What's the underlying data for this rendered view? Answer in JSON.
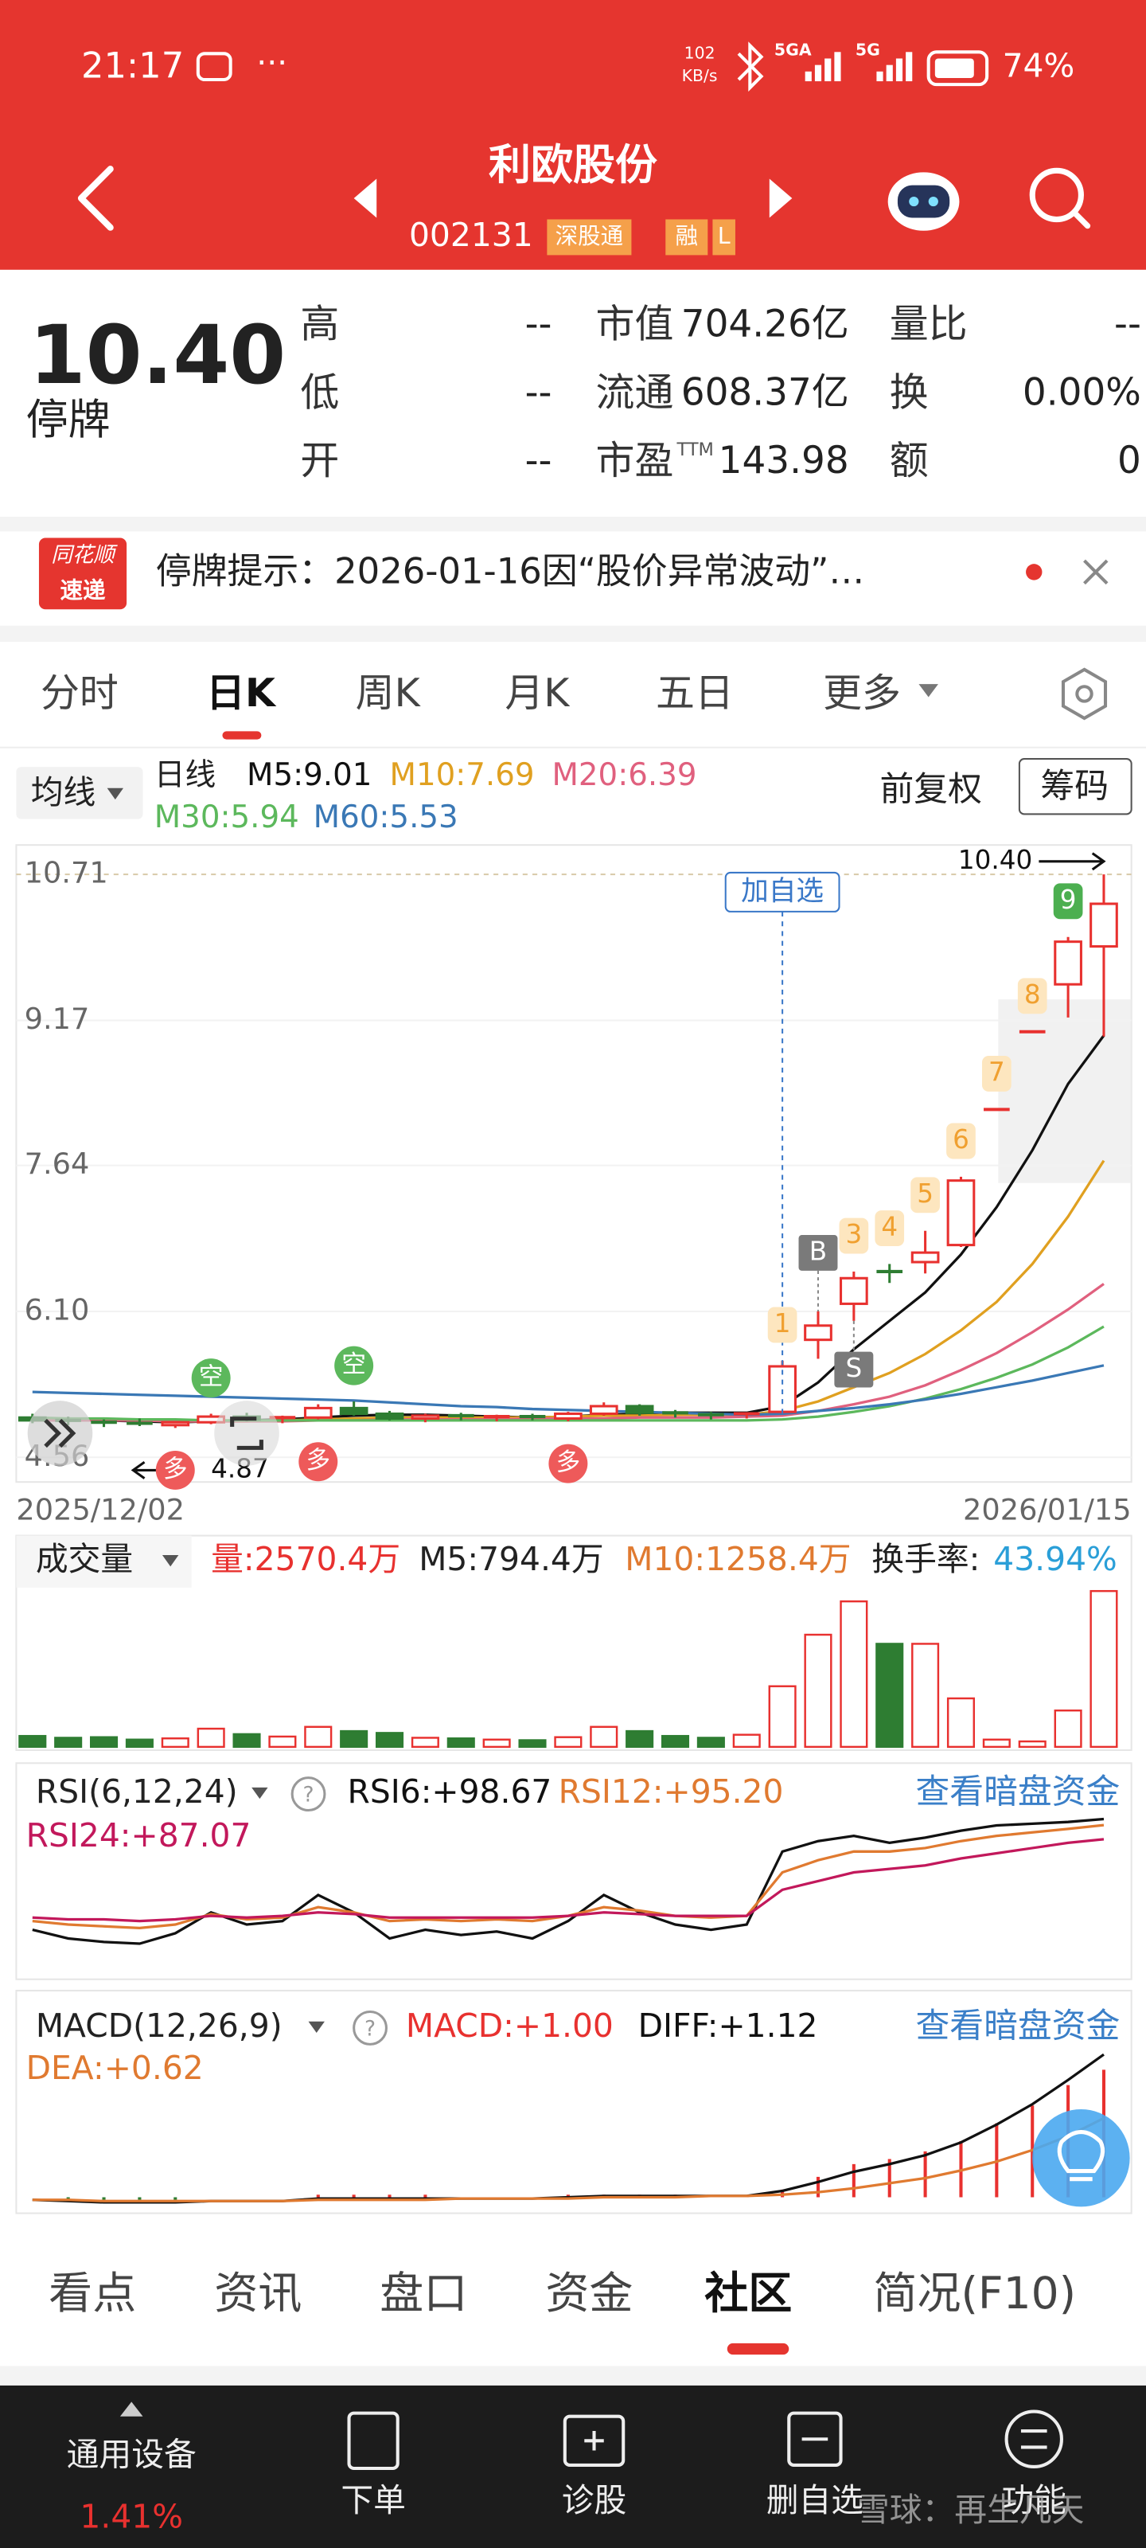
{
  "status_bar": {
    "time": "21:17",
    "net_speed": "102",
    "net_unit": "KB/s",
    "sim1": "5GA",
    "sim2": "5G",
    "battery": "74%"
  },
  "header": {
    "title": "利欧股份",
    "code": "002131",
    "tags": [
      "深股通",
      "融",
      "L"
    ]
  },
  "quote": {
    "price": "10.40",
    "status": "停牌",
    "ttm": "TTM",
    "fields": [
      [
        "高",
        "--"
      ],
      [
        "市值",
        "704.26亿"
      ],
      [
        "量比",
        "--"
      ],
      [
        "低",
        "--"
      ],
      [
        "流通",
        "608.37亿"
      ],
      [
        "换",
        "0.00%"
      ],
      [
        "开",
        "--"
      ],
      [
        "市盈",
        "143.98"
      ],
      [
        "额",
        "0"
      ]
    ]
  },
  "notice": {
    "logo_top": "同花顺",
    "logo_bottom": "速递",
    "text": "停牌提示：2026-01-16因“股价异常波动”…"
  },
  "period_tabs": [
    "分时",
    "日K",
    "周K",
    "月K",
    "五日",
    "更多"
  ],
  "ma_bar": {
    "button": "均线",
    "period": "日线",
    "adjust": "前复权",
    "chips": "筹码"
  },
  "price_chart": {
    "type": "candlestick",
    "categories": [
      "2025/12/02",
      null,
      null,
      null,
      null,
      null,
      null,
      null,
      null,
      null,
      null,
      null,
      null,
      null,
      null,
      null,
      null,
      null,
      null,
      null,
      null,
      null,
      null,
      null,
      null,
      null,
      null,
      null,
      null,
      null,
      "2026/01/15"
    ],
    "open": [
      4.98,
      4.95,
      4.93,
      4.92,
      4.9,
      4.93,
      4.99,
      4.96,
      4.98,
      5.08,
      5.02,
      4.97,
      5.0,
      4.98,
      4.99,
      4.97,
      5.02,
      5.1,
      5.03,
      5.01,
      5.0,
      5.04,
      5.8,
      6.18,
      6.52,
      6.62,
      6.8,
      8.23,
      9.05,
      9.55,
      9.95
    ],
    "high": [
      5.02,
      4.99,
      4.96,
      4.97,
      4.94,
      5.02,
      5.03,
      5.0,
      5.12,
      5.15,
      5.05,
      5.02,
      5.03,
      5.01,
      5.02,
      5.04,
      5.14,
      5.12,
      5.06,
      5.04,
      5.03,
      5.58,
      6.1,
      6.52,
      6.6,
      6.95,
      7.52,
      8.23,
      9.05,
      10.05,
      10.71
    ],
    "low": [
      4.92,
      4.9,
      4.88,
      4.89,
      4.87,
      4.91,
      4.94,
      4.92,
      4.96,
      5.0,
      4.95,
      4.93,
      4.95,
      4.94,
      4.95,
      4.94,
      5.0,
      5.0,
      4.98,
      4.96,
      4.97,
      5.02,
      5.6,
      6.0,
      6.4,
      6.5,
      6.78,
      8.23,
      9.05,
      9.2,
      9.0
    ],
    "close": [
      4.95,
      4.93,
      4.92,
      4.9,
      4.93,
      4.99,
      4.96,
      4.98,
      5.08,
      5.02,
      4.97,
      5.0,
      4.98,
      4.99,
      4.97,
      5.02,
      5.1,
      5.03,
      5.01,
      5.0,
      5.02,
      5.52,
      5.95,
      6.45,
      6.5,
      6.72,
      7.48,
      8.23,
      9.05,
      10.0,
      10.4
    ],
    "up_color": "#e8312f",
    "down_color": "#2e7d32",
    "ylim": [
      4.3,
      11.02
    ],
    "yticks": [
      10.71,
      9.17,
      7.64,
      {
        "value": 6.1,
        "label": "6.10"
      },
      4.56
    ],
    "series": [
      {
        "name": "M5:9.01",
        "color": "#111111",
        "values": [
          4.97,
          4.96,
          4.95,
          4.94,
          4.93,
          4.94,
          4.95,
          4.96,
          4.98,
          5.0,
          5.01,
          5.01,
          5.0,
          4.99,
          4.98,
          4.99,
          5.01,
          5.02,
          5.03,
          5.03,
          5.03,
          5.1,
          5.35,
          5.7,
          6.0,
          6.3,
          6.7,
          7.2,
          7.8,
          8.5,
          9.01
        ]
      },
      {
        "name": "M10:7.69",
        "color": "#e0a020",
        "values": [
          4.96,
          4.96,
          4.95,
          4.95,
          4.94,
          4.94,
          4.94,
          4.95,
          4.96,
          4.97,
          4.98,
          4.98,
          4.98,
          4.98,
          4.98,
          4.99,
          5.0,
          5.0,
          5.01,
          5.01,
          5.01,
          5.05,
          5.15,
          5.3,
          5.45,
          5.65,
          5.9,
          6.2,
          6.6,
          7.1,
          7.69
        ]
      },
      {
        "name": "M20:6.39",
        "color": "#e0607e",
        "values": [
          4.95,
          4.95,
          4.95,
          4.95,
          4.94,
          4.94,
          4.94,
          4.94,
          4.95,
          4.95,
          4.96,
          4.96,
          4.96,
          4.96,
          4.97,
          4.97,
          4.97,
          4.98,
          4.98,
          4.98,
          4.99,
          5.0,
          5.05,
          5.12,
          5.2,
          5.32,
          5.48,
          5.66,
          5.88,
          6.12,
          6.39
        ]
      },
      {
        "name": "M30:5.94",
        "color": "#5cb85c",
        "values": [
          4.98,
          4.97,
          4.97,
          4.96,
          4.96,
          4.95,
          4.95,
          4.95,
          4.95,
          4.95,
          4.95,
          4.95,
          4.95,
          4.95,
          4.95,
          4.95,
          4.95,
          4.95,
          4.95,
          4.95,
          4.95,
          4.96,
          4.99,
          5.04,
          5.1,
          5.18,
          5.28,
          5.4,
          5.54,
          5.72,
          5.94
        ]
      },
      {
        "name": "M60:5.53",
        "color": "#3a78b5",
        "values": [
          5.25,
          5.24,
          5.23,
          5.22,
          5.21,
          5.2,
          5.19,
          5.18,
          5.17,
          5.16,
          5.14,
          5.12,
          5.1,
          5.09,
          5.07,
          5.06,
          5.05,
          5.04,
          5.03,
          5.02,
          5.01,
          5.02,
          5.05,
          5.08,
          5.12,
          5.17,
          5.23,
          5.3,
          5.37,
          5.45,
          5.53
        ]
      }
    ],
    "watch_label": "加自选",
    "watch_index": 21,
    "last_label": "10.40",
    "low_label": "4.87",
    "counts": [
      {
        "index": 21,
        "label": "1",
        "color": "#f0a030",
        "background": "#fde6bf"
      },
      {
        "index": 23,
        "label": "3",
        "color": "#f0a030",
        "background": "#fde6bf"
      },
      {
        "index": 24,
        "label": "4",
        "color": "#f0a030",
        "background": "#fde6bf"
      },
      {
        "index": 25,
        "label": "5",
        "color": "#f0a030",
        "background": "#fde6bf"
      },
      {
        "index": 26,
        "label": "6",
        "color": "#f0a030",
        "background": "#fde6bf"
      },
      {
        "index": 27,
        "label": "7",
        "color": "#f0a030",
        "background": "#fde6bf"
      },
      {
        "index": 28,
        "label": "8",
        "color": "#f0a030",
        "background": "#fde6bf"
      },
      {
        "index": 29,
        "label": "9",
        "color": "#ffffff",
        "background": "#4caf50"
      }
    ],
    "signals": [
      {
        "index": 22,
        "label": "B",
        "side": "above"
      },
      {
        "index": 23,
        "label": "S",
        "side": "below"
      }
    ],
    "markers": [
      {
        "index": 4,
        "label": "多",
        "color": "#ee5a5a",
        "side": "below"
      },
      {
        "index": 5,
        "label": "空",
        "color": "#5cb85c",
        "side": "above"
      },
      {
        "index": 8,
        "label": "多",
        "color": "#ee5a5a",
        "side": "below"
      },
      {
        "index": 9,
        "label": "空",
        "color": "#5cb85c",
        "side": "above"
      },
      {
        "index": 15,
        "label": "多",
        "color": "#ee5a5a",
        "side": "below"
      }
    ]
  },
  "volume_chart": {
    "type": "bar",
    "title": "成交量",
    "labels": [
      {
        "text": "M5:794.4万",
        "color": "#222222"
      },
      {
        "text": "M10:1258.4万",
        "color": "#e07a30"
      },
      {
        "text": "换手率:",
        "color": "#222222"
      },
      {
        "text": "43.94%",
        "color": "#2a9fd8"
      }
    ],
    "ylim": [
      0,
      2600
    ],
    "series": [
      {
        "name": "量:2570.4万",
        "color": "#e8312f",
        "values": [
          180,
          150,
          160,
          120,
          140,
          300,
          210,
          170,
          330,
          260,
          230,
          150,
          140,
          120,
          110,
          160,
          330,
          260,
          180,
          150,
          200,
          1000,
          1850,
          2400,
          1700,
          1700,
          800,
          120,
          90,
          600,
          2570.4
        ]
      }
    ]
  },
  "rsi_chart": {
    "type": "line",
    "title": "RSI(6,12,24)",
    "link": "查看暗盘资金",
    "ylim": [
      0,
      100
    ],
    "series": [
      {
        "name": "RSI6:+98.67",
        "color": "#111111",
        "values": [
          35,
          30,
          28,
          27,
          33,
          45,
          38,
          40,
          55,
          45,
          30,
          35,
          32,
          34,
          30,
          40,
          55,
          45,
          38,
          35,
          38,
          80,
          86,
          89,
          85,
          88,
          92,
          95,
          96,
          97,
          98.67
        ]
      },
      {
        "name": "RSI12:+95.20",
        "color": "#e07a30",
        "values": [
          40,
          38,
          37,
          36,
          38,
          44,
          41,
          42,
          48,
          45,
          40,
          41,
          40,
          41,
          40,
          43,
          48,
          46,
          43,
          42,
          43,
          68,
          75,
          80,
          80,
          82,
          86,
          89,
          91,
          93,
          95.2
        ]
      },
      {
        "name": "RSI24:+87.07",
        "color": "#c2185b",
        "values": [
          42,
          41,
          41,
          40,
          41,
          43,
          42,
          43,
          45,
          44,
          42,
          42,
          42,
          42,
          42,
          43,
          45,
          44,
          43,
          43,
          43,
          58,
          63,
          68,
          70,
          72,
          76,
          79,
          82,
          85,
          87.07
        ]
      }
    ]
  },
  "macd_chart": {
    "type": "bar",
    "title": "MACD(12,26,9)",
    "link": "查看暗盘资金",
    "ylim": [
      -0.1,
      1.2
    ],
    "series": [
      {
        "name": "MACD:+1.00",
        "color": "#e8312f",
        "values": [
          0,
          -0.02,
          -0.02,
          -0.02,
          -0.02,
          0,
          0,
          0,
          0.02,
          0.02,
          0.02,
          0.02,
          0,
          0,
          0,
          0.02,
          0.02,
          0.02,
          0.02,
          0,
          0,
          0.06,
          0.16,
          0.26,
          0.3,
          0.36,
          0.44,
          0.58,
          0.72,
          0.88,
          1.0
        ]
      },
      {
        "name": "DIFF:+1.12",
        "color": "#111111",
        "values": [
          -0.02,
          -0.03,
          -0.04,
          -0.04,
          -0.04,
          -0.03,
          -0.03,
          -0.03,
          -0.01,
          -0.01,
          -0.01,
          -0.01,
          -0.01,
          -0.01,
          -0.01,
          0,
          0.01,
          0.01,
          0.01,
          0.01,
          0.01,
          0.05,
          0.12,
          0.2,
          0.26,
          0.33,
          0.43,
          0.57,
          0.73,
          0.92,
          1.12
        ]
      },
      {
        "name": "DEA:+0.62",
        "color": "#e07a30",
        "values": [
          -0.02,
          -0.02,
          -0.03,
          -0.03,
          -0.03,
          -0.03,
          -0.03,
          -0.03,
          -0.02,
          -0.02,
          -0.02,
          -0.02,
          -0.01,
          -0.01,
          -0.01,
          -0.01,
          0,
          0,
          0,
          0.01,
          0.01,
          0.02,
          0.04,
          0.07,
          0.11,
          0.15,
          0.21,
          0.28,
          0.37,
          0.48,
          0.62
        ]
      }
    ]
  },
  "bottom_tabs": [
    "看点",
    "资讯",
    "盘口",
    "资金",
    "社区",
    "简况(F10)"
  ],
  "bottom_nav": {
    "sector": "通用设备",
    "sector_change": "1.41%",
    "items": [
      "下单",
      "诊股",
      "删自选",
      "功能"
    ]
  },
  "watermark": "雪球：再生凡天"
}
